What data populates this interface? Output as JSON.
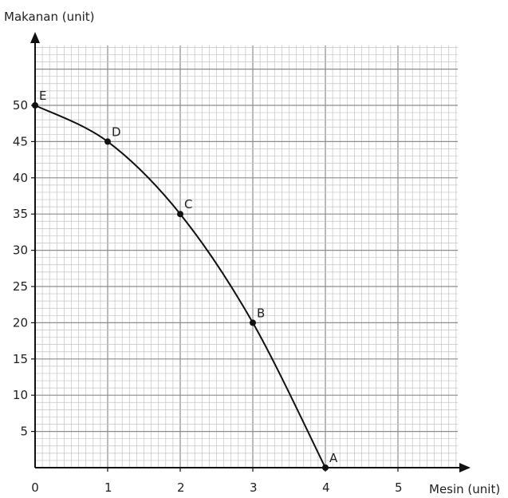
{
  "chart_data": {
    "type": "line",
    "title": "",
    "xlabel": "Mesin (unit)",
    "ylabel": "Makanan (unit)",
    "xlim": [
      0,
      6
    ],
    "ylim": [
      0,
      60
    ],
    "x_ticks": [
      {
        "value": 0,
        "label": "0"
      },
      {
        "value": 1,
        "label": "1"
      },
      {
        "value": 2,
        "label": "2"
      },
      {
        "value": 3,
        "label": "3"
      },
      {
        "value": 4,
        "label": "4"
      },
      {
        "value": 5,
        "label": "5"
      }
    ],
    "y_ticks": [
      {
        "value": 5,
        "label": "5"
      },
      {
        "value": 10,
        "label": "10"
      },
      {
        "value": 15,
        "label": "15"
      },
      {
        "value": 20,
        "label": "20"
      },
      {
        "value": 25,
        "label": "25"
      },
      {
        "value": 30,
        "label": "30"
      },
      {
        "value": 35,
        "label": "35"
      },
      {
        "value": 40,
        "label": "40"
      },
      {
        "value": 45,
        "label": "45"
      },
      {
        "value": 50,
        "label": "50"
      }
    ],
    "grid": true,
    "series": [
      {
        "points": [
          {
            "label": "E",
            "x": 0,
            "y": 50
          },
          {
            "label": "D",
            "x": 1,
            "y": 45
          },
          {
            "label": "C",
            "x": 2,
            "y": 35
          },
          {
            "label": "B",
            "x": 3,
            "y": 20
          },
          {
            "label": "A",
            "x": 4,
            "y": 0
          }
        ]
      }
    ],
    "colors": {
      "line": "#111111",
      "grid_minor": "#c4c4c4",
      "grid_major": "#8c8c8c",
      "axis": "#111111"
    }
  }
}
